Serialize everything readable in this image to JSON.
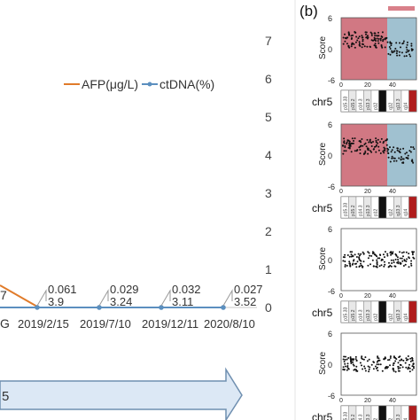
{
  "panel_b_label": "(b)",
  "left_chart": {
    "type": "line",
    "legend": [
      "AFP(μg/L)",
      "ctDNA(%)"
    ],
    "series_colors": {
      "afp": "#e07b2a",
      "ctdna": "#5b8fbf"
    },
    "right_axis_ticks": [
      "0",
      "1",
      "2",
      "3",
      "4",
      "5",
      "6",
      "7"
    ],
    "x_tick_labels": [
      "2019/2/15",
      "2019/7/10",
      "2019/12/11",
      "2020/8/10"
    ],
    "partial_left_x_label": "G",
    "partial_left_value_label": "7",
    "data_labels": [
      {
        "ctdna": "0.061",
        "afp": "3.9"
      },
      {
        "ctdna": "0.029",
        "afp": "3.24"
      },
      {
        "ctdna": "0.032",
        "afp": "3.11"
      },
      {
        "ctdna": "0.027",
        "afp": "3.52"
      }
    ],
    "timeline_arrow_label": "5",
    "timeline_color": "#dce8f5"
  },
  "chart_data": {
    "type": "line",
    "categories": [
      "2019/2/15",
      "2019/7/10",
      "2019/12/11",
      "2020/8/10"
    ],
    "series": [
      {
        "name": "AFP(μg/L)",
        "values": [
          3.9,
          3.24,
          3.11,
          3.52
        ]
      },
      {
        "name": "ctDNA(%)",
        "values": [
          0.061,
          0.029,
          0.032,
          0.027
        ]
      }
    ],
    "ylim_right": [
      0,
      7
    ]
  },
  "right_panels": {
    "score_label": "Score",
    "chr_label": "chr5",
    "tick_values": [
      "6",
      "0",
      "-6"
    ],
    "x_ticks": [
      "0",
      "20",
      "40"
    ],
    "band_labels": [
      "p15.33",
      "p15.2",
      "p14.3",
      "p13.3",
      "p12",
      "q11.2",
      "q12",
      "q13.3",
      "q14"
    ],
    "colors": {
      "gain": "#c9606d",
      "neutral": "#8fb6c8",
      "centromere": "#111111",
      "red_band": "#b01c1c"
    },
    "header_bar_color": "#d9808a"
  }
}
